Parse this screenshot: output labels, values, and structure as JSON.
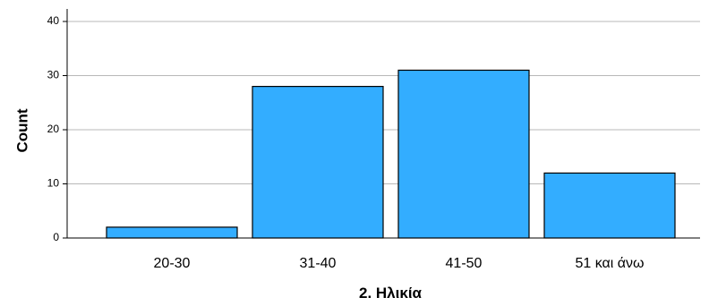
{
  "chart_data": {
    "type": "bar",
    "categories": [
      "20-30",
      "31-40",
      "41-50",
      "51 και άνω"
    ],
    "values": [
      2,
      28,
      31,
      12
    ],
    "xlabel": "2. Ηλικία",
    "ylabel": "Count",
    "ylim": [
      0,
      40
    ],
    "yticks": [
      "0",
      "10",
      "20",
      "30",
      "40"
    ],
    "bar_color": "#33adff",
    "grid": true
  }
}
